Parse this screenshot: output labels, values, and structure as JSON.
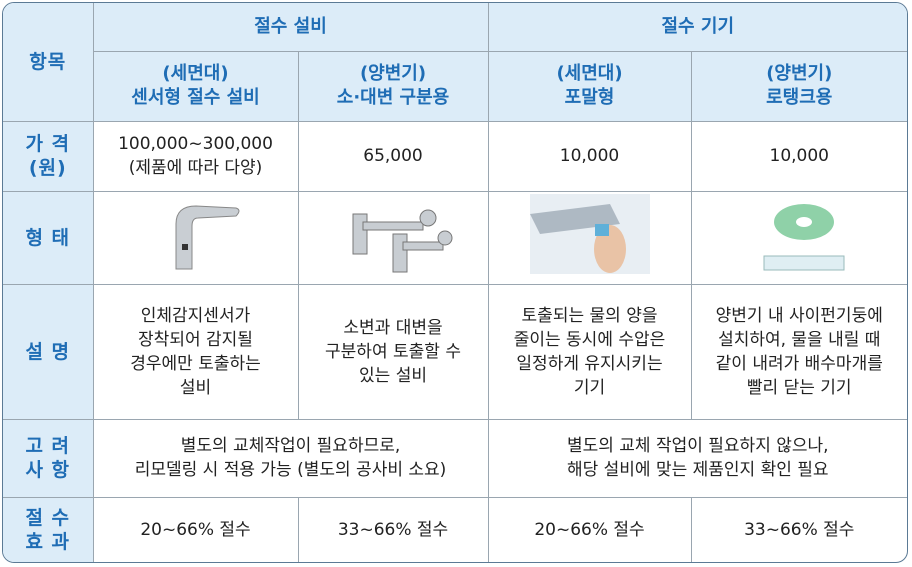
{
  "table": {
    "header": {
      "item": "항목",
      "groups": [
        "절수 설비",
        "절수 기기"
      ],
      "columns": [
        [
          "(세면대)",
          "센서형 절수 설비"
        ],
        [
          "(양변기)",
          "소·대변 구분용"
        ],
        [
          "(세면대)",
          "포말형"
        ],
        [
          "(양변기)",
          "로탱크용"
        ]
      ]
    },
    "rows": {
      "price": {
        "label": [
          "가 격",
          "(원)"
        ],
        "cells": [
          [
            "100,000~300,000",
            "(제품에 따라 다양)"
          ],
          [
            "65,000"
          ],
          [
            "10,000"
          ],
          [
            "10,000"
          ]
        ]
      },
      "form": {
        "label": [
          "형 태"
        ]
      },
      "description": {
        "label": [
          "설 명"
        ],
        "cells": [
          [
            "인체감지센서가",
            "장착되어 감지될",
            "경우에만 토출하는",
            "설비"
          ],
          [
            "소변과 대변을",
            "구분하여 토출할 수",
            "있는 설비"
          ],
          [
            "토출되는 물의 양을",
            "줄이는 동시에 수압은",
            "일정하게 유지시키는",
            "기기"
          ],
          [
            "양변기 내 사이펀기둥에",
            "설치하여, 물을 내릴 때",
            "같이 내려가 배수마개를",
            "빨리 닫는 기기"
          ]
        ]
      },
      "considerations": {
        "label": [
          "고 려",
          "사 항"
        ],
        "cells": [
          [
            "별도의 교체작업이 필요하므로,",
            "리모델링 시 적용 가능 (별도의 공사비 소요)"
          ],
          [
            "별도의 교체 작업이 필요하지 않으나,",
            "해당 설비에 맞는 제품인지 확인 필요"
          ]
        ]
      },
      "savings": {
        "label": [
          "절 수",
          "효 과"
        ],
        "cells": [
          [
            "20~66% 절수"
          ],
          [
            "33~66% 절수"
          ],
          [
            "20~66% 절수"
          ],
          [
            "33~66% 절수"
          ]
        ]
      }
    }
  }
}
